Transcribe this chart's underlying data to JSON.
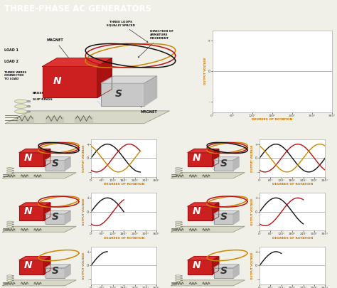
{
  "title": "THREE-PHASE AC GENERATORS",
  "title_bg": "#5b8fa8",
  "title_fg": "#ffffff",
  "bg": "#f0efe8",
  "plot_bg": "#ffffff",
  "ylabel": "OUTPUT VOLTAGE",
  "xlabel": "DEGREES OF ROTATION",
  "xlabel_color": "#cc7700",
  "ylabel_color": "#cc7700",
  "col_black": "#111111",
  "col_red": "#bb1111",
  "col_gold": "#cc8800",
  "col_magnet_red": "#cc2020",
  "col_magnet_dark": "#991010",
  "col_magnet_top": "#dd3333",
  "col_s_gray": "#c8c8c8",
  "col_table": "#d8d8c8",
  "col_table_edge": "#999988",
  "col_slip": "#e8e8c0",
  "col_slip_edge": "#aaaaaa",
  "panel_configs": [
    {
      "phases": 1,
      "cutoff": 90
    },
    {
      "phases": 1,
      "cutoff": 120
    },
    {
      "phases": 2,
      "cutoff": 180
    },
    {
      "phases": 2,
      "cutoff": 240
    },
    {
      "phases": 3,
      "cutoff": 270
    },
    {
      "phases": 3,
      "cutoff": 360
    }
  ]
}
